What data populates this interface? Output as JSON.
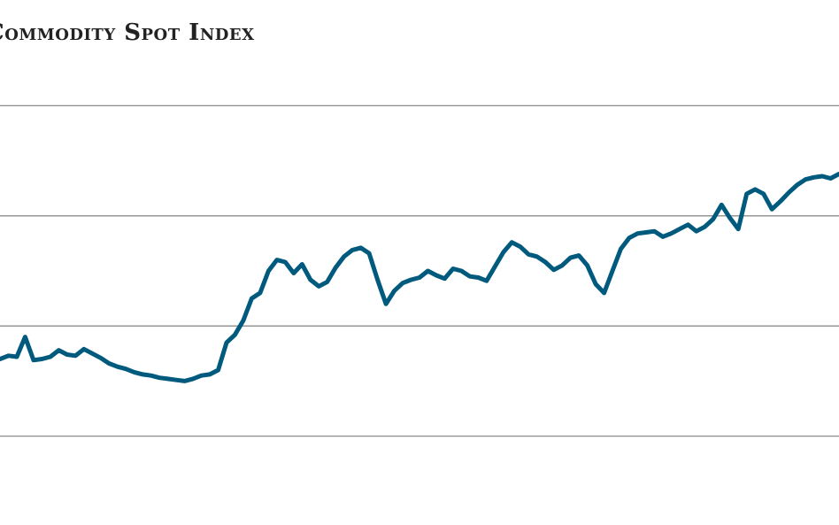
{
  "chart_data": {
    "type": "line",
    "title": "Commodity Spot Index",
    "xlabel": "",
    "ylabel": "",
    "grid": true,
    "ylim": [
      0,
      5
    ],
    "yticks": [
      1,
      2,
      3,
      4
    ],
    "xlim": [
      0,
      100
    ],
    "colors": {
      "line": "#005a7d",
      "grid": "#8c8c8c",
      "title": "#222222"
    },
    "series": [
      {
        "x": [
          0,
          1,
          2,
          3,
          4,
          5,
          6,
          7,
          8,
          9,
          10,
          11,
          12,
          13,
          14,
          15,
          16,
          17,
          18,
          19,
          20,
          21,
          22,
          23,
          24,
          25,
          26,
          27,
          28,
          29,
          30,
          31,
          32,
          33,
          34,
          35,
          36,
          37,
          38,
          39,
          40,
          41,
          42,
          43,
          44,
          45,
          46,
          47,
          48,
          49,
          50,
          51,
          52,
          53,
          54,
          55,
          56,
          57,
          58,
          59,
          60,
          61,
          62,
          63,
          64,
          65,
          66,
          67,
          68,
          69,
          70,
          71,
          72,
          73,
          74,
          75,
          76,
          77,
          78,
          79,
          80,
          81,
          82,
          83,
          84,
          85,
          86,
          87,
          88,
          89,
          90,
          91,
          92,
          93,
          94,
          95,
          96,
          97,
          98,
          99,
          100
        ],
        "values": [
          1.7,
          1.73,
          1.72,
          1.9,
          1.69,
          1.7,
          1.72,
          1.78,
          1.74,
          1.73,
          1.79,
          1.75,
          1.71,
          1.66,
          1.63,
          1.61,
          1.58,
          1.56,
          1.55,
          1.53,
          1.52,
          1.51,
          1.5,
          1.52,
          1.55,
          1.56,
          1.6,
          1.85,
          1.92,
          2.05,
          2.25,
          2.3,
          2.5,
          2.6,
          2.58,
          2.48,
          2.56,
          2.42,
          2.36,
          2.4,
          2.53,
          2.63,
          2.69,
          2.71,
          2.66,
          2.42,
          2.2,
          2.32,
          2.39,
          2.42,
          2.44,
          2.5,
          2.46,
          2.43,
          2.52,
          2.5,
          2.45,
          2.44,
          2.41,
          2.54,
          2.67,
          2.76,
          2.72,
          2.65,
          2.63,
          2.58,
          2.51,
          2.55,
          2.62,
          2.64,
          2.55,
          2.38,
          2.3,
          2.5,
          2.7,
          2.8,
          2.84,
          2.85,
          2.86,
          2.81,
          2.84,
          2.88,
          2.92,
          2.86,
          2.9,
          2.97,
          3.1,
          2.98,
          2.88,
          3.2,
          3.24,
          3.2,
          3.06,
          3.13,
          3.21,
          3.28,
          3.33,
          3.35,
          3.36,
          3.34,
          3.38
        ]
      }
    ]
  }
}
